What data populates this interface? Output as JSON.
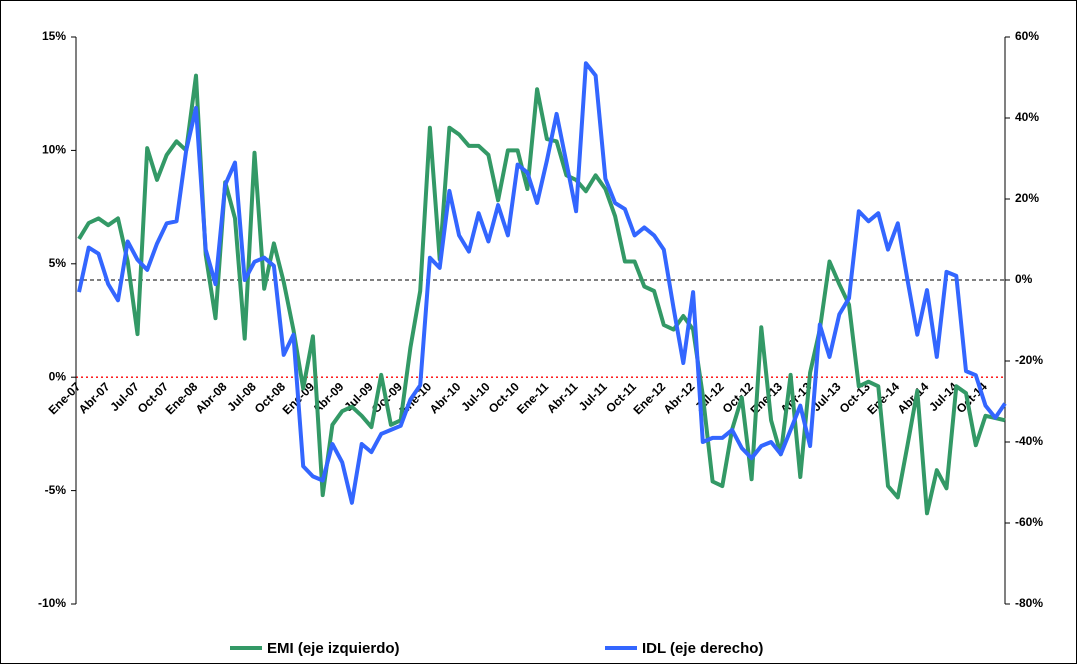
{
  "chart_data": {
    "type": "line",
    "categories": [
      "Ene-07",
      null,
      null,
      "Abr-07",
      null,
      null,
      "Jul-07",
      null,
      null,
      "Oct-07",
      null,
      null,
      "Ene-08",
      null,
      null,
      "Abr-08",
      null,
      null,
      "Jul-08",
      null,
      null,
      "Oct-08",
      null,
      null,
      "Ene-09",
      null,
      null,
      "Abr-09",
      null,
      null,
      "Jul-09",
      null,
      null,
      "Oct-09",
      null,
      null,
      "Ene-10",
      null,
      null,
      "Abr-10",
      null,
      null,
      "Jul-10",
      null,
      null,
      "Oct-10",
      null,
      null,
      "Ene-11",
      null,
      null,
      "Abr-11",
      null,
      null,
      "Jul-11",
      null,
      null,
      "Oct-11",
      null,
      null,
      "Ene-12",
      null,
      null,
      "Abr-12",
      null,
      null,
      "Jul-12",
      null,
      null,
      "Oct-12",
      null,
      null,
      "Ene-13",
      null,
      null,
      "Abr-13",
      null,
      null,
      "Jul-13",
      null,
      null,
      "Oct-13",
      null,
      null,
      "Ene-14",
      null,
      null,
      "Abr-14",
      null,
      null,
      "Jul-14",
      null,
      null,
      "Oct-14",
      null,
      null
    ],
    "series": [
      {
        "name": "EMI (eje izquierdo)",
        "color": "#339966",
        "axis": "y",
        "values": [
          6.1,
          6.8,
          7.0,
          6.7,
          7.0,
          5.1,
          1.9,
          10.1,
          8.7,
          9.8,
          10.4,
          10.0,
          13.3,
          5.4,
          2.6,
          8.6,
          7.0,
          1.7,
          9.9,
          3.9,
          5.9,
          4.2,
          2.1,
          -0.5,
          1.8,
          -5.2,
          -2.1,
          -1.5,
          -1.3,
          -1.7,
          -2.2,
          0.1,
          -2.1,
          -1.9,
          1.3,
          3.8,
          11.0,
          5.2,
          11.0,
          10.7,
          10.2,
          10.2,
          9.8,
          7.8,
          10.0,
          10.0,
          8.3,
          12.7,
          10.5,
          10.4,
          8.9,
          8.7,
          8.2,
          8.9,
          8.3,
          7.1,
          5.1,
          5.1,
          4.0,
          3.8,
          2.3,
          2.1,
          2.7,
          2.1,
          -0.8,
          -4.6,
          -4.8,
          -2.3,
          -0.9,
          -4.5,
          2.2,
          -1.9,
          -3.4,
          0.1,
          -4.4,
          0.2,
          2.1,
          5.1,
          4.1,
          3.2,
          -0.4,
          -0.2,
          -0.4,
          -4.8,
          -5.3,
          -3.0,
          -0.6,
          -6.0,
          -4.1,
          -4.9,
          -0.4,
          -0.7,
          -3.0,
          -1.7,
          -1.8,
          -1.9
        ]
      },
      {
        "name": "IDL (eje derecho)",
        "color": "#3366ff",
        "axis": "y2",
        "values": [
          -3,
          8,
          6.5,
          -1,
          -5,
          9.5,
          5,
          2.5,
          9,
          14,
          14.5,
          32,
          42.5,
          7.5,
          -1,
          23.5,
          29,
          0,
          4.5,
          5.5,
          3.5,
          -18.5,
          -13.5,
          -46,
          -48.5,
          -49.5,
          -40.5,
          -45,
          -55,
          -40.5,
          -42.5,
          -38,
          -37,
          -36,
          -29.5,
          -26,
          5.5,
          3,
          22,
          11,
          7,
          16.5,
          9.5,
          18.5,
          11,
          28.5,
          26.5,
          19,
          29.5,
          41,
          29,
          17,
          53.5,
          50.5,
          25,
          19,
          17.5,
          11,
          13,
          11,
          7.5,
          -7,
          -20.5,
          -3,
          -40,
          -39,
          -39,
          -37,
          -41.5,
          -44,
          -41,
          -40,
          -43,
          -37,
          -31,
          -41,
          -11,
          -19,
          -8.5,
          -4.5,
          17,
          14.5,
          16.5,
          7.5,
          14,
          0,
          -13.5,
          -2.5,
          -19,
          2,
          1,
          -22.5,
          -23.5,
          -31,
          -34,
          -30.5
        ]
      }
    ],
    "ylim": [
      -10,
      15
    ],
    "yticks": [
      {
        "value": -10,
        "label": "-10%"
      },
      {
        "value": -5,
        "label": "-5%"
      },
      {
        "value": 0,
        "label": "0%"
      },
      {
        "value": 5,
        "label": "5%"
      },
      {
        "value": 10,
        "label": "10%"
      },
      {
        "value": 15,
        "label": "15%"
      }
    ],
    "y2lim": [
      -80,
      60
    ],
    "y2ticks": [
      {
        "value": -80,
        "label": "-80%"
      },
      {
        "value": -60,
        "label": "-60%"
      },
      {
        "value": -40,
        "label": "-40%"
      },
      {
        "value": -20,
        "label": "-20%"
      },
      {
        "value": 0,
        "label": "0%"
      },
      {
        "value": 20,
        "label": "20%"
      },
      {
        "value": 40,
        "label": "40%"
      },
      {
        "value": 60,
        "label": "60%"
      }
    ],
    "zero_lines": {
      "y": "#ff0000",
      "y2": "#000000"
    },
    "legend": "bottom"
  }
}
